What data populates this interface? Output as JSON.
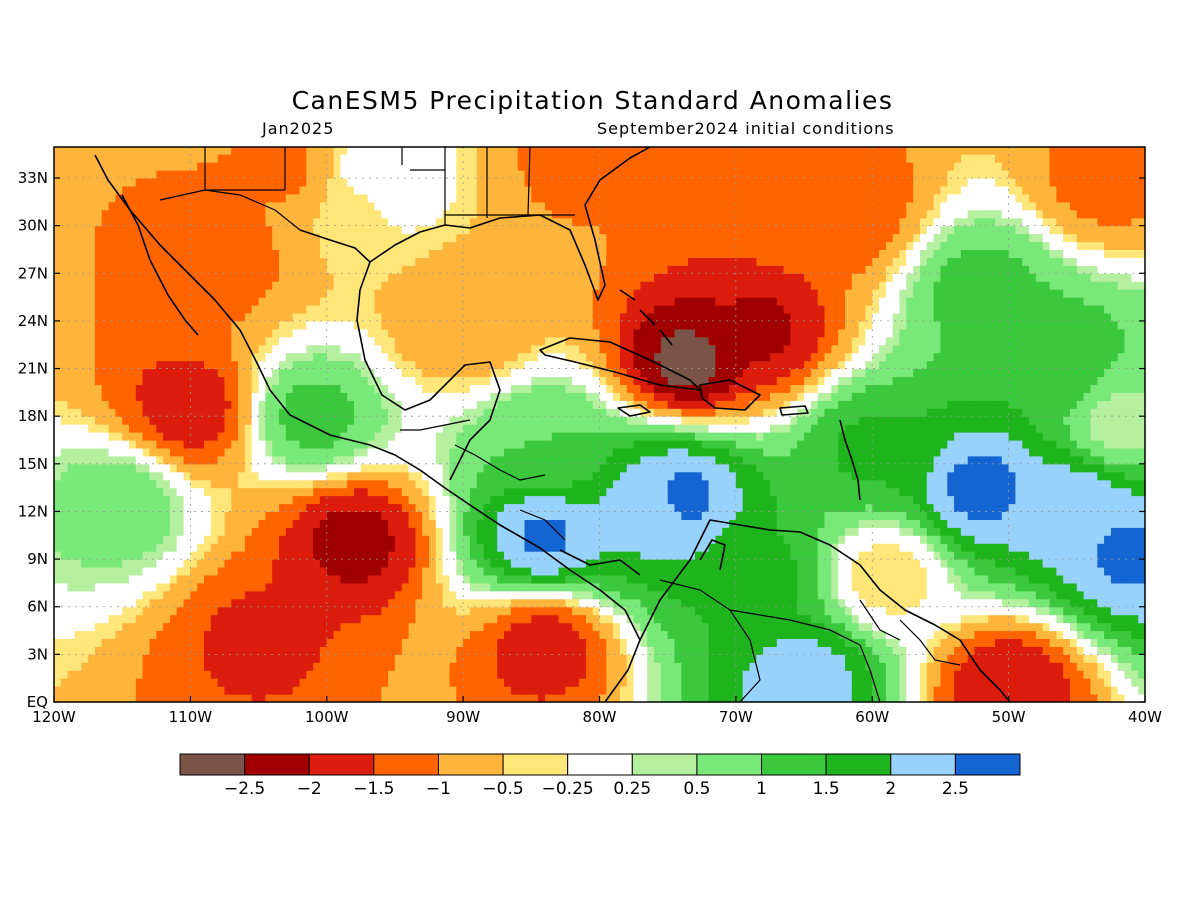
{
  "title": "CanESM5 Precipitation Standard Anomalies",
  "subtitle_left": "Jan2025",
  "subtitle_right": "September2024 initial conditions",
  "map": {
    "lon_range": [
      -120,
      -40
    ],
    "lat_range": [
      0,
      35
    ],
    "lat_labels": [
      "EQ",
      "3N",
      "6N",
      "9N",
      "12N",
      "15N",
      "18N",
      "21N",
      "24N",
      "27N",
      "30N",
      "33N"
    ],
    "lat_values": [
      0,
      3,
      6,
      9,
      12,
      15,
      18,
      21,
      24,
      27,
      30,
      33
    ],
    "lon_labels": [
      "120W",
      "110W",
      "100W",
      "90W",
      "80W",
      "70W",
      "60W",
      "50W",
      "40W"
    ],
    "lon_values": [
      -120,
      -110,
      -100,
      -90,
      -80,
      -70,
      -60,
      -50,
      -40
    ],
    "grid": true
  },
  "colorbar": {
    "labels": [
      "-2.5",
      "-2",
      "-1.5",
      "-1",
      "-0.5",
      "-0.25",
      "0.25",
      "0.5",
      "1",
      "1.5",
      "2",
      "2.5"
    ],
    "colors": [
      "#7a5448",
      "#a00000",
      "#dc1c0c",
      "#ff6400",
      "#ffb43c",
      "#ffe678",
      "#ffffff",
      "#b4f0a0",
      "#78e878",
      "#3cc83c",
      "#1eb41e",
      "#96d2fa",
      "#1464d2"
    ]
  },
  "anomaly_centers": [
    {
      "lon": -73.5,
      "lat": 21.5,
      "value": -2.7
    },
    {
      "lon": -68,
      "lat": 23.5,
      "value": -2.1
    },
    {
      "lon": -62,
      "lat": 31,
      "value": -1.4
    },
    {
      "lon": -66,
      "lat": 31.5,
      "value": -1.3
    },
    {
      "lon": -98,
      "lat": 10.2,
      "value": -2.2
    },
    {
      "lon": -110,
      "lat": 18.5,
      "value": -1.8
    },
    {
      "lon": -108,
      "lat": 28,
      "value": -1.3
    },
    {
      "lon": -103,
      "lat": 33.5,
      "value": -1.1
    },
    {
      "lon": -84,
      "lat": 3.5,
      "value": -1.8
    },
    {
      "lon": -105,
      "lat": 4,
      "value": -1.6
    },
    {
      "lon": -50,
      "lat": 1.0,
      "value": -2.0
    },
    {
      "lon": -82,
      "lat": 34,
      "value": -1.1
    },
    {
      "lon": -90,
      "lat": 24,
      "value": -1.0
    },
    {
      "lon": -98,
      "lat": 31,
      "value": -0.4
    },
    {
      "lon": -96,
      "lat": 33,
      "value": 0.2
    },
    {
      "lon": -43,
      "lat": 33,
      "value": -1.2
    },
    {
      "lon": -74,
      "lat": 13,
      "value": 2.7
    },
    {
      "lon": -76,
      "lat": 12.5,
      "value": 2.2
    },
    {
      "lon": -84,
      "lat": 10.5,
      "value": 2.6
    },
    {
      "lon": -52,
      "lat": 13.5,
      "value": 2.7
    },
    {
      "lon": -45,
      "lat": 12.5,
      "value": 2.4
    },
    {
      "lon": -41,
      "lat": 9.5,
      "value": 2.6
    },
    {
      "lon": -65,
      "lat": 1.5,
      "value": 2.3
    },
    {
      "lon": -68,
      "lat": 8,
      "value": 1.6
    },
    {
      "lon": -60,
      "lat": 16,
      "value": 1.6
    },
    {
      "lon": -52,
      "lat": 26,
      "value": 1.2
    },
    {
      "lon": -47,
      "lat": 21,
      "value": 1.5
    },
    {
      "lon": -101,
      "lat": 18,
      "value": 1.2
    },
    {
      "lon": -115,
      "lat": 12.5,
      "value": 0.8
    },
    {
      "lon": -59,
      "lat": 8,
      "value": -0.5
    },
    {
      "lon": -84,
      "lat": 16,
      "value": 1.0
    },
    {
      "lon": -42,
      "lat": 17.5,
      "value": 0.3
    }
  ]
}
